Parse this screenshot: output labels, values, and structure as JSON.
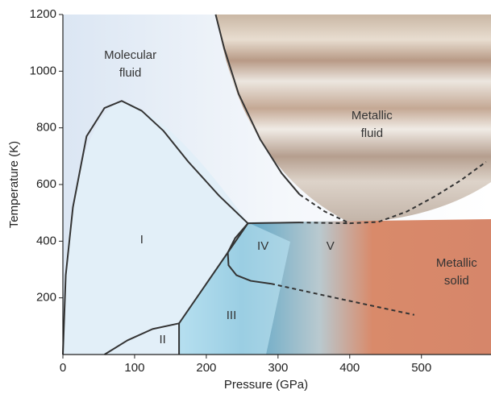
{
  "chart_data": {
    "type": "phase-diagram",
    "x_label": "Pressure (GPa)",
    "y_label": "Temperature (K)",
    "xlim": [
      0,
      597
    ],
    "ylim": [
      0,
      1200
    ],
    "xticks": [
      0,
      100,
      200,
      300,
      400,
      500
    ],
    "yticks": [
      200,
      400,
      600,
      800,
      1000,
      1200
    ],
    "line_color": "#333333",
    "series": [
      {
        "dashed": false,
        "x": [
          213,
          225,
          245,
          275,
          305,
          330
        ],
        "values": [
          1200,
          1080,
          920,
          760,
          640,
          565
        ]
      },
      {
        "dashed": true,
        "x": [
          330,
          365,
          400,
          440,
          480,
          520,
          555,
          590
        ],
        "values": [
          565,
          505,
          463,
          468,
          505,
          560,
          615,
          680
        ]
      },
      {
        "dashed": false,
        "x": [
          0,
          4,
          14,
          33,
          58,
          82,
          110,
          140,
          175,
          218,
          258
        ],
        "values": [
          0,
          280,
          520,
          770,
          870,
          895,
          860,
          790,
          680,
          560,
          463
        ]
      },
      {
        "dashed": false,
        "x": [
          258,
          330
        ],
        "values": [
          463,
          466
        ]
      },
      {
        "dashed": true,
        "x": [
          330,
          400
        ],
        "values": [
          466,
          463
        ]
      },
      {
        "dashed": false,
        "x": [
          258,
          240,
          230,
          231,
          242,
          262,
          290
        ],
        "values": [
          463,
          410,
          360,
          315,
          280,
          260,
          250
        ]
      },
      {
        "dashed": true,
        "x": [
          290,
          380,
          490
        ],
        "values": [
          250,
          200,
          140
        ]
      },
      {
        "dashed": false,
        "x": [
          258,
          162,
          162
        ],
        "values": [
          463,
          110,
          0
        ]
      },
      {
        "dashed": false,
        "x": [
          58,
          90,
          125,
          162
        ],
        "values": [
          0,
          50,
          90,
          110
        ]
      }
    ],
    "annotations": [
      {
        "lines": [
          "Molecular",
          "fluid"
        ],
        "x": 94,
        "y": 1023
      },
      {
        "lines": [
          "Metallic",
          "fluid"
        ],
        "x": 431,
        "y": 810
      },
      {
        "lines": [
          "I"
        ],
        "x": 110,
        "y": 403
      },
      {
        "lines": [
          "II"
        ],
        "x": 139,
        "y": 51
      },
      {
        "lines": [
          "III"
        ],
        "x": 235,
        "y": 136
      },
      {
        "lines": [
          "IV"
        ],
        "x": 279,
        "y": 381
      },
      {
        "lines": [
          "V"
        ],
        "x": 373,
        "y": 381
      },
      {
        "lines": [
          "Metallic",
          "solid"
        ],
        "x": 549,
        "y": 290
      }
    ]
  }
}
